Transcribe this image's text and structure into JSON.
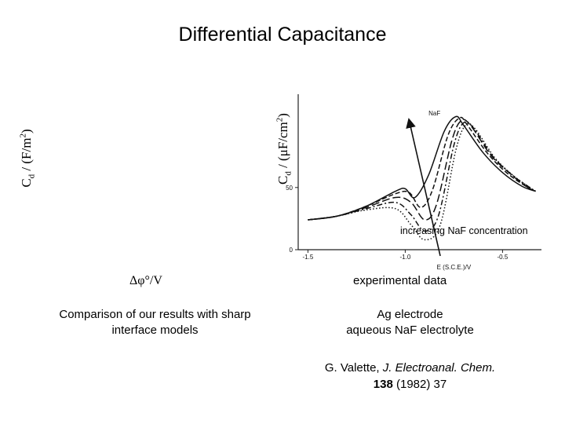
{
  "slide": {
    "title": "Differential Capacitance",
    "left_ylabel": {
      "main": "C",
      "sub": "d",
      "rest": " / (F/m",
      "sup": "2",
      "close": ")"
    },
    "right_ylabel": {
      "main": "C",
      "sub": "d",
      "rest": " / (μF/cm",
      "sup": "2",
      "close": ")"
    },
    "sim_xlabel": "Δφ°/V",
    "comparison_text": "Comparison of our results with sharp interface models",
    "experimental_label": "experimental data",
    "electrode": "Ag electrode",
    "electrolyte": "aqueous NaF electrolyte",
    "citation": {
      "author": "G. Valette, ",
      "journal": "J. Electroanal. Chem.",
      "volume": "138",
      "rest": " (1982) 37"
    }
  },
  "chart_data": {
    "type": "line",
    "title": "",
    "xlabel": "E (S.C.E.)/V",
    "ylabel": "",
    "inset_label": "NaF",
    "xlim": [
      -1.55,
      -0.3
    ],
    "ylim": [
      0,
      125
    ],
    "x_ticks": [
      -1.5,
      -1.0,
      -0.5
    ],
    "x_tick_labels": [
      "-1.5",
      "-1.0",
      "-0.5"
    ],
    "y_ticks": [
      0,
      50
    ],
    "y_tick_labels": [
      "0",
      "50"
    ],
    "annotation": "increasing NaF concentration",
    "series": [
      {
        "style": "solid",
        "points": [
          [
            -1.5,
            24
          ],
          [
            -1.35,
            27
          ],
          [
            -1.2,
            35
          ],
          [
            -1.05,
            47
          ],
          [
            -1.0,
            49
          ],
          [
            -0.95,
            42
          ],
          [
            -0.88,
            60
          ],
          [
            -0.8,
            95
          ],
          [
            -0.74,
            107
          ],
          [
            -0.7,
            100
          ],
          [
            -0.6,
            78
          ],
          [
            -0.5,
            62
          ],
          [
            -0.4,
            51
          ],
          [
            -0.33,
            47
          ]
        ]
      },
      {
        "style": "dashed",
        "points": [
          [
            -1.5,
            24
          ],
          [
            -1.35,
            27
          ],
          [
            -1.2,
            35
          ],
          [
            -1.05,
            45
          ],
          [
            -0.98,
            46
          ],
          [
            -0.92,
            34
          ],
          [
            -0.86,
            48
          ],
          [
            -0.78,
            92
          ],
          [
            -0.72,
            106
          ],
          [
            -0.68,
            100
          ],
          [
            -0.58,
            78
          ],
          [
            -0.48,
            62
          ],
          [
            -0.38,
            51
          ],
          [
            -0.33,
            47
          ]
        ]
      },
      {
        "style": "long-dash",
        "points": [
          [
            -1.5,
            24
          ],
          [
            -1.35,
            27
          ],
          [
            -1.2,
            34
          ],
          [
            -1.05,
            42
          ],
          [
            -0.97,
            38
          ],
          [
            -0.9,
            24
          ],
          [
            -0.84,
            36
          ],
          [
            -0.76,
            88
          ],
          [
            -0.71,
            104
          ],
          [
            -0.66,
            99
          ],
          [
            -0.56,
            76
          ],
          [
            -0.46,
            61
          ],
          [
            -0.37,
            50
          ],
          [
            -0.33,
            47
          ]
        ]
      },
      {
        "style": "dash-dot",
        "points": [
          [
            -1.5,
            24
          ],
          [
            -1.35,
            27
          ],
          [
            -1.2,
            33
          ],
          [
            -1.05,
            38
          ],
          [
            -0.97,
            28
          ],
          [
            -0.9,
            15
          ],
          [
            -0.83,
            27
          ],
          [
            -0.75,
            84
          ],
          [
            -0.7,
            102
          ],
          [
            -0.65,
            98
          ],
          [
            -0.55,
            75
          ],
          [
            -0.45,
            60
          ],
          [
            -0.36,
            50
          ],
          [
            -0.33,
            47
          ]
        ]
      },
      {
        "style": "dotted",
        "points": [
          [
            -1.5,
            24
          ],
          [
            -1.35,
            27
          ],
          [
            -1.2,
            32
          ],
          [
            -1.05,
            33
          ],
          [
            -0.97,
            20
          ],
          [
            -0.9,
            8
          ],
          [
            -0.82,
            20
          ],
          [
            -0.74,
            80
          ],
          [
            -0.69,
            100
          ],
          [
            -0.64,
            97
          ],
          [
            -0.54,
            74
          ],
          [
            -0.44,
            59
          ],
          [
            -0.35,
            49
          ],
          [
            -0.33,
            47
          ]
        ]
      }
    ]
  }
}
